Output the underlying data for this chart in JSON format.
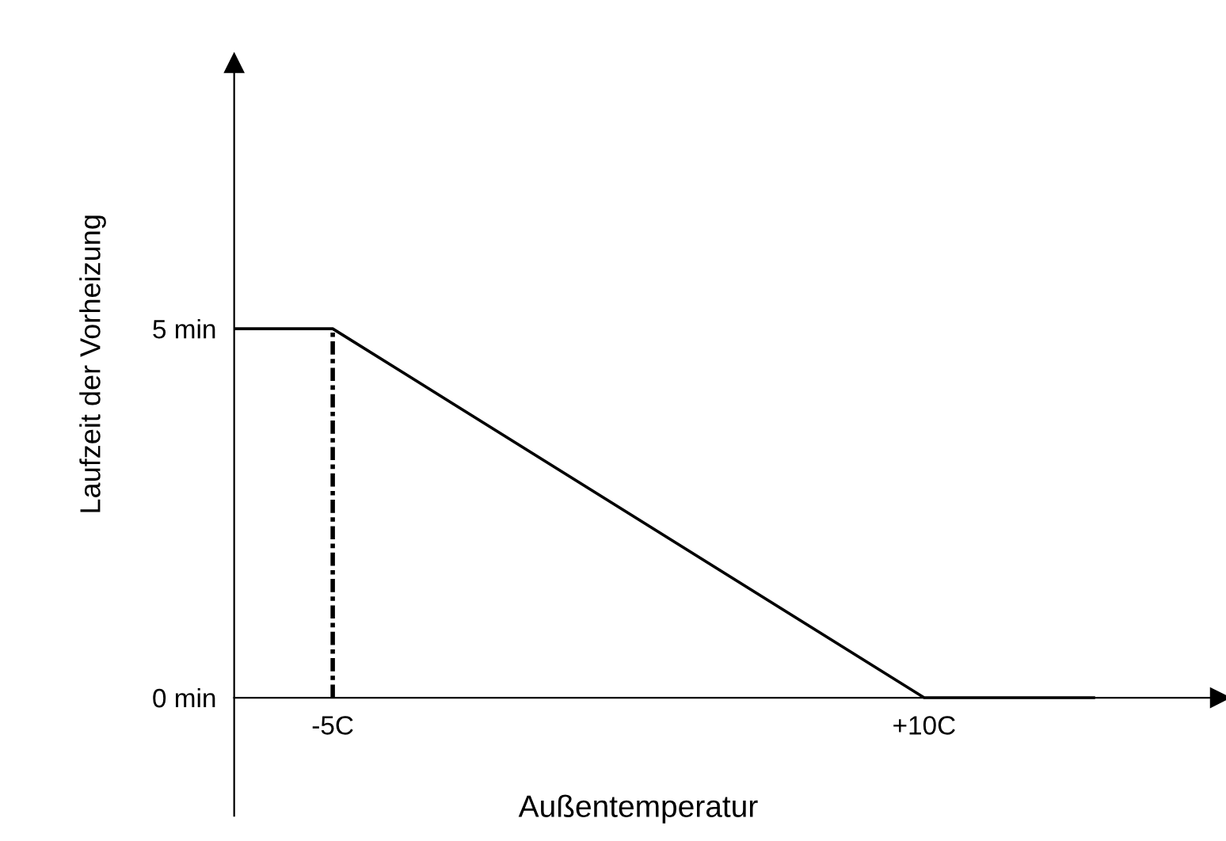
{
  "chart_data": {
    "type": "line",
    "xlabel": "Außentemperatur",
    "ylabel": "Laufzeit der Vorheizung",
    "xlim": [
      -7.5,
      17.5
    ],
    "ylim": [
      -1.6,
      8.6
    ],
    "xticks": [
      {
        "value": -5,
        "label": "-5C"
      },
      {
        "value": 10,
        "label": "+10C"
      }
    ],
    "yticks": [
      {
        "value": 0,
        "label": "0 min"
      },
      {
        "value": 5,
        "label": "5 min"
      }
    ],
    "grid": false,
    "legend": false,
    "series": [
      {
        "color": "#000000",
        "x": [
          -7.5,
          -5,
          10,
          14.3
        ],
        "values": [
          5,
          5,
          0,
          0
        ],
        "line_style": "solid"
      },
      {
        "color": "#000000",
        "x": [
          -5,
          -5
        ],
        "values": [
          0,
          5
        ],
        "line_style": "dashed"
      }
    ]
  }
}
